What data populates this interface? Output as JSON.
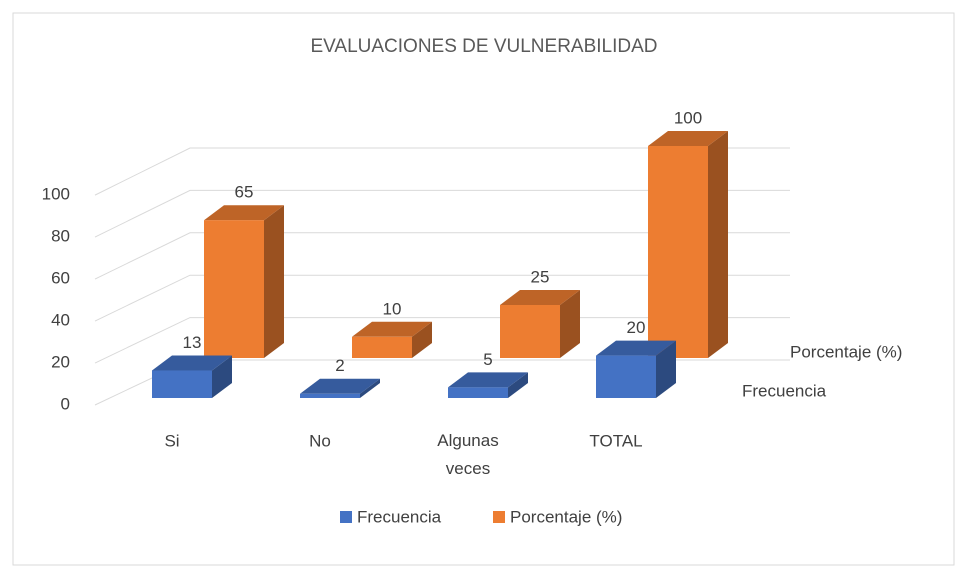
{
  "chart_data": {
    "type": "bar3d",
    "title": "EVALUACIONES DE VULNERABILIDAD",
    "categories": [
      "Si",
      "No",
      "Algunas veces",
      "TOTAL"
    ],
    "series": [
      {
        "name": "Frecuencia",
        "color": "#4472c4",
        "values": [
          13,
          2,
          5,
          20
        ]
      },
      {
        "name": "Porcentaje (%)",
        "color": "#ed7d31",
        "values": [
          65,
          10,
          25,
          100
        ]
      }
    ],
    "ylim": [
      0,
      100
    ],
    "yticks": [
      0,
      20,
      40,
      60,
      80,
      100
    ],
    "grid": true,
    "legend": "bottom"
  }
}
